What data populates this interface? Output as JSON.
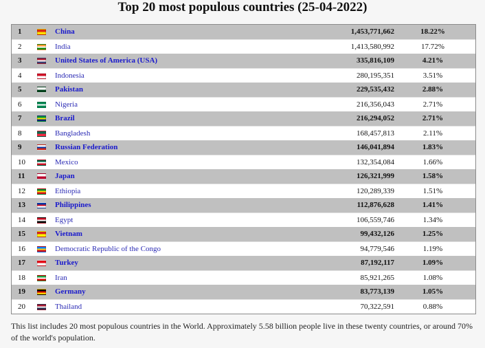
{
  "title": "Top 20 most populous countries (25-04-2022)",
  "rows": [
    {
      "rank": "1",
      "name": "China",
      "population": "1,453,771,662",
      "percent": "18.22%",
      "flag": {
        "icon": "china-flag-icon",
        "colors": [
          "#de2910",
          "#ffde00"
        ]
      }
    },
    {
      "rank": "2",
      "name": "India",
      "population": "1,413,580,992",
      "percent": "17.72%",
      "flag": {
        "icon": "india-flag-icon",
        "colors": [
          "#ff9933",
          "#ffffff",
          "#138808"
        ]
      }
    },
    {
      "rank": "3",
      "name": "United States of America (USA)",
      "population": "335,816,109",
      "percent": "4.21%",
      "flag": {
        "icon": "usa-flag-icon",
        "colors": [
          "#b22234",
          "#ffffff",
          "#3c3b6e"
        ]
      }
    },
    {
      "rank": "4",
      "name": "Indonesia",
      "population": "280,195,351",
      "percent": "3.51%",
      "flag": {
        "icon": "indonesia-flag-icon",
        "colors": [
          "#ce1126",
          "#ffffff"
        ]
      }
    },
    {
      "rank": "5",
      "name": "Pakistan",
      "population": "229,535,432",
      "percent": "2.88%",
      "flag": {
        "icon": "pakistan-flag-icon",
        "colors": [
          "#ffffff",
          "#01411c"
        ]
      }
    },
    {
      "rank": "6",
      "name": "Nigeria",
      "population": "216,356,043",
      "percent": "2.71%",
      "flag": {
        "icon": "nigeria-flag-icon",
        "colors": [
          "#008751",
          "#ffffff",
          "#008751"
        ]
      }
    },
    {
      "rank": "7",
      "name": "Brazil",
      "population": "216,294,052",
      "percent": "2.71%",
      "flag": {
        "icon": "brazil-flag-icon",
        "colors": [
          "#009c3b",
          "#ffdf00",
          "#002776"
        ]
      }
    },
    {
      "rank": "8",
      "name": "Bangladesh",
      "population": "168,457,813",
      "percent": "2.11%",
      "flag": {
        "icon": "bangladesh-flag-icon",
        "colors": [
          "#006a4e",
          "#f42a41"
        ]
      }
    },
    {
      "rank": "9",
      "name": "Russian Federation",
      "population": "146,041,894",
      "percent": "1.83%",
      "flag": {
        "icon": "russia-flag-icon",
        "colors": [
          "#ffffff",
          "#0039a6",
          "#d52b1e"
        ]
      }
    },
    {
      "rank": "10",
      "name": "Mexico",
      "population": "132,354,084",
      "percent": "1.66%",
      "flag": {
        "icon": "mexico-flag-icon",
        "colors": [
          "#006847",
          "#ffffff",
          "#ce1126"
        ]
      }
    },
    {
      "rank": "11",
      "name": "Japan",
      "population": "126,321,999",
      "percent": "1.58%",
      "flag": {
        "icon": "japan-flag-icon",
        "colors": [
          "#ffffff",
          "#bc002d"
        ]
      }
    },
    {
      "rank": "12",
      "name": "Ethiopia",
      "population": "120,289,339",
      "percent": "1.51%",
      "flag": {
        "icon": "ethiopia-flag-icon",
        "colors": [
          "#078930",
          "#fcdd09",
          "#da121a"
        ]
      }
    },
    {
      "rank": "13",
      "name": "Philippines",
      "population": "112,876,628",
      "percent": "1.41%",
      "flag": {
        "icon": "philippines-flag-icon",
        "colors": [
          "#0038a8",
          "#ce1126",
          "#ffffff"
        ]
      }
    },
    {
      "rank": "14",
      "name": "Egypt",
      "population": "106,559,746",
      "percent": "1.34%",
      "flag": {
        "icon": "egypt-flag-icon",
        "colors": [
          "#ce1126",
          "#ffffff",
          "#000000"
        ]
      }
    },
    {
      "rank": "15",
      "name": "Vietnam",
      "population": "99,432,126",
      "percent": "1.25%",
      "flag": {
        "icon": "vietnam-flag-icon",
        "colors": [
          "#da251d",
          "#ffff00"
        ]
      }
    },
    {
      "rank": "16",
      "name": "Democratic Republic of the Congo",
      "population": "94,779,546",
      "percent": "1.19%",
      "flag": {
        "icon": "drc-flag-icon",
        "colors": [
          "#007fff",
          "#f7d618",
          "#ce1021"
        ]
      }
    },
    {
      "rank": "17",
      "name": "Turkey",
      "population": "87,192,117",
      "percent": "1.09%",
      "flag": {
        "icon": "turkey-flag-icon",
        "colors": [
          "#e30a17",
          "#ffffff"
        ]
      }
    },
    {
      "rank": "18",
      "name": "Iran",
      "population": "85,921,265",
      "percent": "1.08%",
      "flag": {
        "icon": "iran-flag-icon",
        "colors": [
          "#239f40",
          "#ffffff",
          "#da0000"
        ]
      }
    },
    {
      "rank": "19",
      "name": "Germany",
      "population": "83,773,139",
      "percent": "1.05%",
      "flag": {
        "icon": "germany-flag-icon",
        "colors": [
          "#000000",
          "#dd0000",
          "#ffce00"
        ]
      }
    },
    {
      "rank": "20",
      "name": "Thailand",
      "population": "70,322,591",
      "percent": "0.88%",
      "flag": {
        "icon": "thailand-flag-icon",
        "colors": [
          "#a51931",
          "#f4f5f8",
          "#2d2a4a"
        ]
      }
    }
  ],
  "note": "This list includes 20 most populous countries in the World. Approximately 5.58 billion people live in these twenty countries, or around 70% of the world's population."
}
